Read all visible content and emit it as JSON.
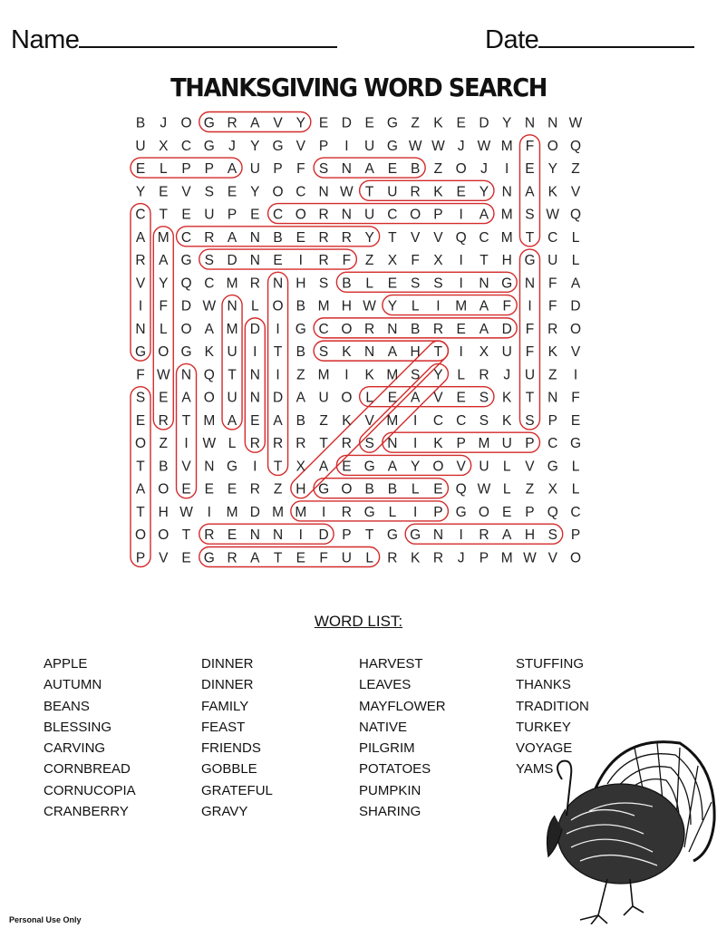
{
  "header": {
    "name_label": "Name",
    "date_label": "Date"
  },
  "title": "THANKSGIVING WORD SEARCH",
  "grid": [
    "BJOGRAVYEDEGZKEDYNNW",
    "UXCGJYGVPIUGWWJWMFOQ",
    "ELPPAUPFSNAEBZOJIEYZ",
    "YEVSEYOCNWTURKEYNAKV",
    "CTEUPECORNUCOPIAMSWQ",
    "AMCRANBERRYTVVQCMTCL",
    "RAGSDNEIRFZXFXITHGUL",
    "VYQCMRNHSBLESSINGNFA",
    "IFDWNLOBMHWYLIMAFIFD",
    "NLOAMDIGCORNBREADFRO",
    "GOGKUITBSKNAHTIXUFKV",
    "FWNQTNIZMIKMSYLRJUZI",
    "SEAOUNDAUOLEAVESKTNF",
    "ERTMAEABZKVMICCSKSPE",
    "OZIWLRRRTRSNIKPMUPCG",
    "TBVNGITXAEGAYOVULVGL",
    "AOEEERZHGOBBLEQWLZXL",
    "THWIMDMMIRGLIPGOEPQC",
    "OOTRENNIDPTGGNIRAHSP",
    "PVEGRATEFULRKRJPMWVO"
  ],
  "found": [
    {
      "word": "GRAVY",
      "from": [
        0,
        3
      ],
      "to": [
        0,
        7
      ]
    },
    {
      "word": "FEAST",
      "from": [
        1,
        17
      ],
      "to": [
        5,
        17
      ]
    },
    {
      "word": "APPLE",
      "from": [
        2,
        0
      ],
      "to": [
        2,
        4
      ]
    },
    {
      "word": "BEANS",
      "from": [
        2,
        8
      ],
      "to": [
        2,
        12
      ]
    },
    {
      "word": "TURKEY",
      "from": [
        3,
        10
      ],
      "to": [
        3,
        15
      ]
    },
    {
      "word": "CARVING",
      "from": [
        4,
        0
      ],
      "to": [
        10,
        0
      ]
    },
    {
      "word": "CORNUCOPIA",
      "from": [
        4,
        6
      ],
      "to": [
        4,
        15
      ]
    },
    {
      "word": "MAYFLOWER",
      "from": [
        5,
        1
      ],
      "to": [
        13,
        1
      ]
    },
    {
      "word": "CRANBERRY",
      "from": [
        5,
        2
      ],
      "to": [
        5,
        10
      ]
    },
    {
      "word": "FRIENDS",
      "from": [
        6,
        3
      ],
      "to": [
        6,
        9
      ]
    },
    {
      "word": "STUFFING",
      "from": [
        6,
        17
      ],
      "to": [
        13,
        17
      ]
    },
    {
      "word": "TRADITION",
      "from": [
        7,
        6
      ],
      "to": [
        15,
        6
      ]
    },
    {
      "word": "BLESSING",
      "from": [
        7,
        9
      ],
      "to": [
        7,
        16
      ]
    },
    {
      "word": "FAMILY",
      "from": [
        8,
        11
      ],
      "to": [
        8,
        16
      ]
    },
    {
      "word": "AUTUMN",
      "from": [
        8,
        4
      ],
      "to": [
        13,
        4
      ]
    },
    {
      "word": "CORNBREAD",
      "from": [
        9,
        8
      ],
      "to": [
        9,
        16
      ]
    },
    {
      "word": "DINNER",
      "from": [
        9,
        5
      ],
      "to": [
        14,
        5
      ]
    },
    {
      "word": "THANKS",
      "from": [
        10,
        8
      ],
      "to": [
        10,
        13
      ]
    },
    {
      "word": "NATIVE",
      "from": [
        11,
        2
      ],
      "to": [
        16,
        2
      ]
    },
    {
      "word": "POTATOES",
      "from": [
        12,
        0
      ],
      "to": [
        19,
        0
      ]
    },
    {
      "word": "LEAVES",
      "from": [
        12,
        10
      ],
      "to": [
        12,
        15
      ]
    },
    {
      "word": "HARVEST",
      "from": [
        16,
        7
      ],
      "to": [
        10,
        13
      ]
    },
    {
      "word": "YAMS",
      "from": [
        11,
        13
      ],
      "to": [
        14,
        10
      ]
    },
    {
      "word": "PUMPKIN",
      "from": [
        14,
        11
      ],
      "to": [
        14,
        17
      ]
    },
    {
      "word": "VOYAGE",
      "from": [
        15,
        9
      ],
      "to": [
        15,
        14
      ]
    },
    {
      "word": "GOBBLE",
      "from": [
        16,
        8
      ],
      "to": [
        16,
        13
      ]
    },
    {
      "word": "PILGRIM",
      "from": [
        17,
        7
      ],
      "to": [
        17,
        13
      ]
    },
    {
      "word": "DINNER",
      "from": [
        18,
        3
      ],
      "to": [
        18,
        8
      ]
    },
    {
      "word": "SHARING",
      "from": [
        18,
        12
      ],
      "to": [
        18,
        18
      ]
    },
    {
      "word": "GRATEFUL",
      "from": [
        19,
        3
      ],
      "to": [
        19,
        10
      ]
    }
  ],
  "circle_color": "#d42a2a",
  "word_list": {
    "title": "WORD LIST:",
    "columns": [
      [
        "APPLE",
        "AUTUMN",
        "BEANS",
        "BLESSING",
        "CARVING",
        "CORNBREAD",
        "CORNUCOPIA",
        "CRANBERRY"
      ],
      [
        "DINNER",
        "DINNER",
        "FAMILY",
        "FEAST",
        "FRIENDS",
        "GOBBLE",
        "GRATEFUL",
        "GRAVY"
      ],
      [
        "HARVEST",
        "LEAVES",
        "MAYFLOWER",
        "NATIVE",
        "PILGRIM",
        "POTATOES",
        "PUMPKIN",
        "SHARING"
      ],
      [
        "STUFFING",
        "THANKS",
        "TRADITION",
        "TURKEY",
        "VOYAGE",
        "YAMS"
      ]
    ]
  },
  "illustration": "turkey-drawing",
  "footer": "Personal Use Only"
}
